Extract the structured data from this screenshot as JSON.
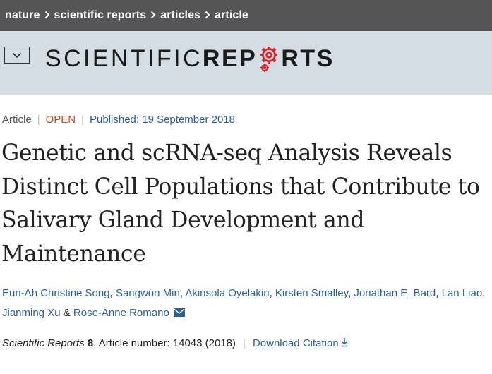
{
  "breadcrumb": {
    "items": [
      "nature",
      "scientific reports",
      "articles",
      "article"
    ]
  },
  "journal": {
    "name_light": "SCIENTIFIC ",
    "name_bold_before_gear": "REP",
    "name_bold_after_gear": "RTS",
    "menu_icon": "chevron-down-icon",
    "gear_color": "#e31e24"
  },
  "article": {
    "type": "Article",
    "access": "OPEN",
    "published": "Published: 19 September 2018",
    "title": "Genetic and scRNA-seq Analysis Reveals Distinct Cell Populations that Contribute to Salivary Gland Development and Maintenance"
  },
  "authors": [
    "Eun-Ah Christine Song",
    "Sangwon Min",
    "Akinsola Oyelakin",
    "Kirsten Smalley",
    "Jonathan E. Bard",
    "Lan Liao",
    "Jianming Xu",
    "Rose-Anne Romano"
  ],
  "author_joiners": [
    ", ",
    ", ",
    ", ",
    ", ",
    ", ",
    ", ",
    " & "
  ],
  "citation": {
    "journal": "Scientific Reports",
    "volume": "8",
    "article_number": ", Article number: 14043 (2018)",
    "download_label": "Download Citation"
  },
  "colors": {
    "link": "#2a5fa1",
    "open": "#cc4b1c",
    "topbar": "#555555",
    "band": "#d4dde3"
  }
}
